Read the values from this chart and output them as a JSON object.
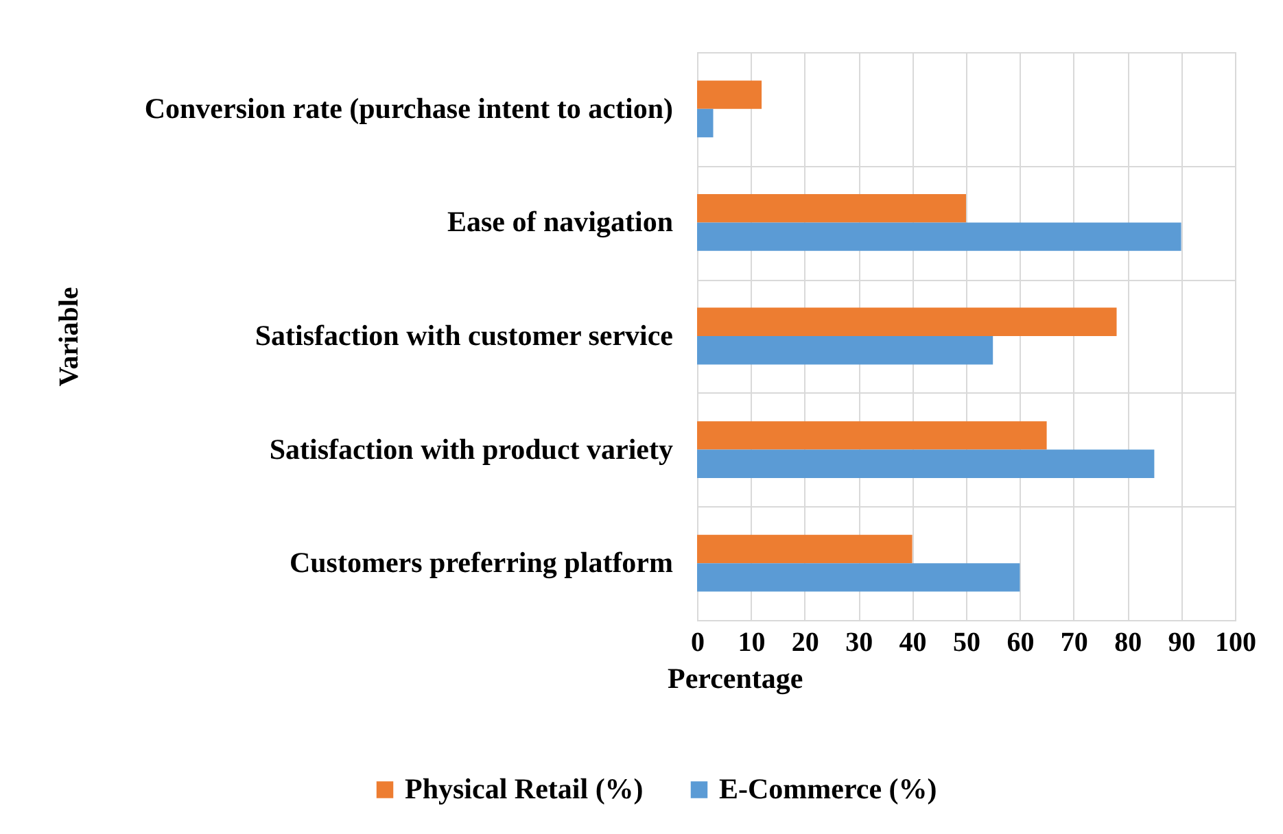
{
  "chart_data": {
    "type": "bar",
    "orientation": "horizontal",
    "xlabel": "Percentage",
    "ylabel": "Variable",
    "categories": [
      "Conversion rate (purchase intent to action)",
      "Ease of navigation",
      "Satisfaction with customer service",
      "Satisfaction with product variety",
      "Customers preferring platform"
    ],
    "series": [
      {
        "name": "Physical Retail (%)",
        "color": "#ed7d31",
        "values": [
          12,
          50,
          78,
          65,
          40
        ]
      },
      {
        "name": "E-Commerce (%)",
        "color": "#5b9bd5",
        "values": [
          3,
          90,
          55,
          85,
          60
        ]
      }
    ],
    "xlim": [
      0,
      100
    ],
    "xticks": [
      0,
      10,
      20,
      30,
      40,
      50,
      60,
      70,
      80,
      90,
      100
    ],
    "grid": true,
    "legend": "bottom"
  }
}
